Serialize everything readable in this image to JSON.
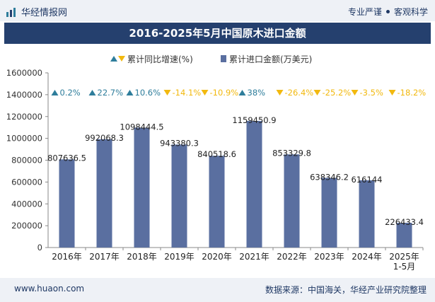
{
  "header": {
    "brand": "华经情报网",
    "right_left": "专业严谨",
    "right_right": "客观科学"
  },
  "footer": {
    "url": "www.huaon.com",
    "source": "数据来源：中国海关，华经产业研究院整理"
  },
  "colors": {
    "bar": "#5a6fa0",
    "up": "#2e7d9b",
    "down": "#f2b90f",
    "title_bg": "#25406e"
  },
  "chart_data": {
    "type": "bar",
    "title": "2016-2025年5月中国原木进口金额",
    "legend": [
      {
        "name": "累计同比增速(%)",
        "marker": "triangle-up-down"
      },
      {
        "name": "累计进口金额(万美元)",
        "marker": "bar"
      }
    ],
    "categories": [
      "2016年",
      "2017年",
      "2018年",
      "2019年",
      "2020年",
      "2021年",
      "2022年",
      "2023年",
      "2024年",
      "2025年\n1-5月"
    ],
    "series": [
      {
        "name": "累计进口金额(万美元)",
        "values": [
          807636.5,
          992068.3,
          1098444.5,
          943380.3,
          840518.6,
          1159450.9,
          853329.8,
          638346.2,
          616144,
          226433.4
        ]
      },
      {
        "name": "累计同比增速(%)",
        "values": [
          0.2,
          22.7,
          10.6,
          -14.1,
          -10.9,
          38,
          -26.4,
          -25.2,
          -3.5,
          -18.2
        ]
      }
    ],
    "value_labels": [
      "807636.5",
      "992068.3",
      "1098444.5",
      "943380.3",
      "840518.6",
      "1159450.9",
      "853329.8",
      "638346.2",
      "616144",
      "226433.4"
    ],
    "growth_labels": [
      "0.2%",
      "22.7%",
      "10.6%",
      "-14.1%",
      "-10.9%",
      "38%",
      "-26.4%",
      "-25.2%",
      "-3.5%",
      "-18.2%"
    ],
    "yticks": [
      "0",
      "200000",
      "400000",
      "600000",
      "800000",
      "1000000",
      "1200000",
      "1400000",
      "1600000"
    ],
    "ylim": [
      0,
      1600000
    ],
    "grid": false,
    "legend_position": "top-center"
  }
}
